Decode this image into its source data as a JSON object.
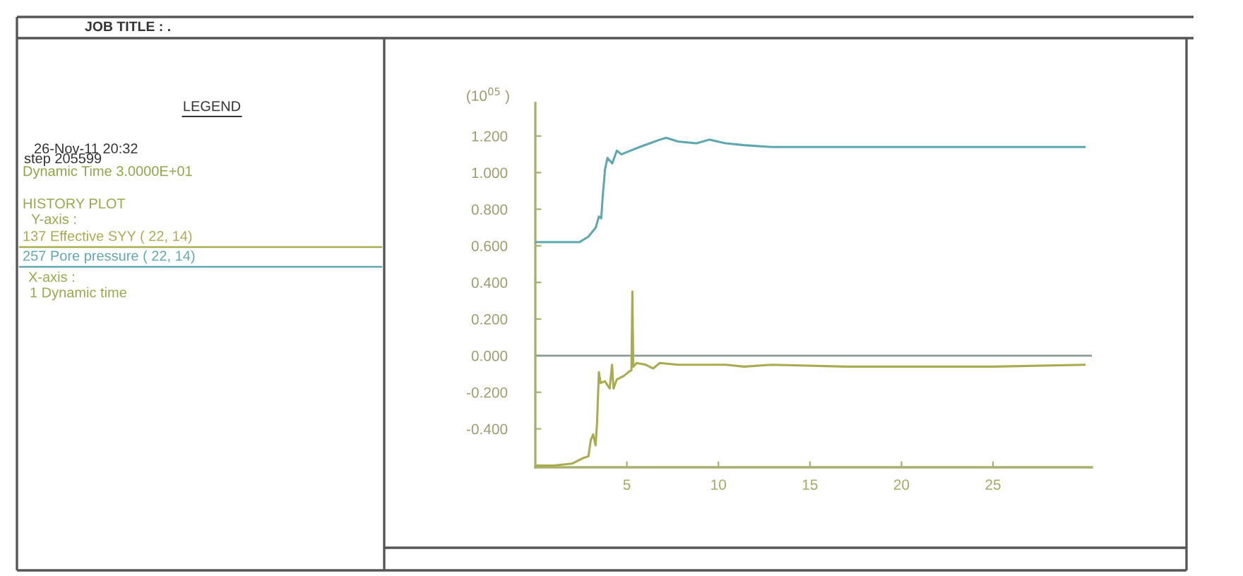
{
  "chart_data": {
    "type": "line",
    "title": "JOB TITLE : .",
    "ylabel": "(10$^{05}$ )",
    "annotations": [
      "LEGEND",
      "26-Nov-11 20:32",
      "step 205599",
      "Dynamic Time 3.0000E+01",
      "HISTORY PLOT",
      "Y-axis :",
      "X-axis :",
      "1 Dynamic time"
    ],
    "xlim": [
      0,
      30.4
    ],
    "xticks": [
      5,
      10,
      15,
      20,
      25
    ],
    "ylim": [
      -0.61,
      1.38
    ],
    "yticks": [
      {
        "value": -0.4,
        "label": "-0.400"
      },
      {
        "value": -0.2,
        "label": "-0.200"
      },
      {
        "value": 0,
        "label": "0.000"
      },
      {
        "value": 0.2,
        "label": "0.200"
      },
      {
        "value": 0.4,
        "label": "0.400"
      },
      {
        "value": 0.6,
        "label": "0.600"
      },
      {
        "value": 0.8,
        "label": "0.800"
      },
      {
        "value": 1.0,
        "label": "1.000"
      },
      {
        "value": 1.2,
        "label": "1.200"
      }
    ],
    "ref_lines": [
      {
        "axis": "y",
        "value": 0,
        "color": "#8c9a96"
      }
    ],
    "legend": "left",
    "series": [
      {
        "name": "137 Effective SYY ( 22, 14)",
        "color": "#a9ac4e",
        "x": [
          0,
          1,
          2,
          2.6,
          2.9,
          3.03,
          3.16,
          3.29,
          3.37,
          3.47,
          3.57,
          3.8,
          4.06,
          4.19,
          4.27,
          4.45,
          4.84,
          5.09,
          5.25,
          5.3,
          5.35,
          5.53,
          6.04,
          6.43,
          6.8,
          7.8,
          9.1,
          10.4,
          11.4,
          12.9,
          17,
          20,
          25,
          30
        ],
        "values": [
          -0.6,
          -0.6,
          -0.59,
          -0.56,
          -0.55,
          -0.46,
          -0.43,
          -0.49,
          -0.37,
          -0.09,
          -0.15,
          -0.14,
          -0.18,
          -0.05,
          -0.18,
          -0.13,
          -0.11,
          -0.09,
          -0.08,
          0.35,
          -0.06,
          -0.04,
          -0.05,
          -0.07,
          -0.04,
          -0.05,
          -0.05,
          -0.05,
          -0.06,
          -0.05,
          -0.06,
          -0.06,
          -0.06,
          -0.05
        ]
      },
      {
        "name": "257 Pore pressure ( 22, 14)",
        "color": "#5fa7ae",
        "x": [
          0,
          1,
          2,
          2.4,
          2.9,
          3.3,
          3.47,
          3.6,
          3.68,
          3.81,
          3.94,
          4.2,
          4.45,
          4.7,
          5.2,
          5.7,
          6.25,
          6.8,
          7.15,
          7.8,
          8.8,
          9.5,
          10.4,
          11.4,
          12.9,
          15,
          17,
          20,
          25,
          30
        ],
        "values": [
          0.62,
          0.62,
          0.62,
          0.62,
          0.65,
          0.7,
          0.76,
          0.75,
          0.87,
          1.02,
          1.08,
          1.05,
          1.12,
          1.1,
          1.12,
          1.14,
          1.16,
          1.18,
          1.19,
          1.17,
          1.16,
          1.18,
          1.16,
          1.15,
          1.14,
          1.14,
          1.14,
          1.14,
          1.14,
          1.14
        ]
      }
    ]
  }
}
